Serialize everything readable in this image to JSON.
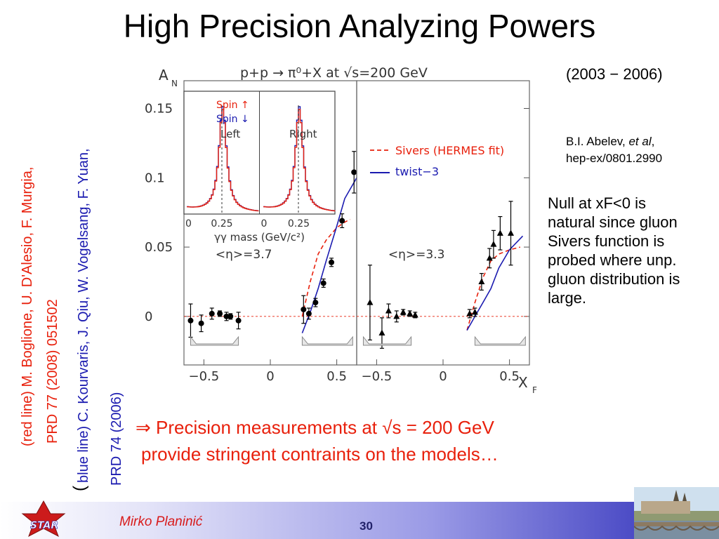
{
  "slide": {
    "title": "High Precision Analyzing Powers",
    "date_range": "(2003 − 2006)",
    "reference": {
      "author_prefix": "B.I. Abelev, ",
      "author_etal": "et al",
      "author_suffix": ",",
      "arxiv": "hep-ex/0801.2990"
    },
    "null_note": "Null at xF<0 is natural since gluon Sivers function is probed where unp. gluon distribution is large.",
    "conclusion": {
      "line1": "⇒ Precision measurements at √s = 200 GeV",
      "line2": "provide stringent contraints on the models…"
    },
    "side_notes": {
      "red_line1": "(red  line) M. Boglione, U. D'Alesio, F. Murgia,",
      "red_line2": "PRD 77 (2008) 051502",
      "blue_paren": "(",
      "blue_line1": "blue  line) C. Kourvaris, J. Qiu, W. Vogelsang, F. Yuan,",
      "blue_line2": "PRD 74 (2006)"
    },
    "footer": {
      "author": "Mirko Planinić",
      "page_number": "30",
      "logo_text": "STAR"
    },
    "colors": {
      "title": "#000000",
      "accent_red": "#e8200c",
      "accent_blue": "#1b1bb0",
      "footer_dark": "#2b2bb8"
    }
  },
  "chart_data": {
    "type": "scatter",
    "title": "p+p → π⁰+X at √s=200 GeV",
    "ylabel": "A_N",
    "ylabel_main": "A",
    "ylabel_sub": "N",
    "xlabel": "X_F",
    "xlabel_main": "X",
    "xlabel_sub": "F",
    "ylim": [
      -0.035,
      0.17
    ],
    "y_ticks": [
      "0.15",
      "0.1",
      "0.05",
      "0"
    ],
    "y_tick_values": [
      0.15,
      0.1,
      0.05,
      0
    ],
    "legend": [
      "Sivers (HERMES fit)",
      "twist−3"
    ],
    "grid": false,
    "panels": [
      {
        "eta_label": "<η>=3.7",
        "xlim": [
          -0.65,
          0.65
        ],
        "x_ticks": [
          "−0.5",
          "0",
          "0.5"
        ],
        "x_tick_values": [
          -0.5,
          0,
          0.5
        ],
        "marker": "circle",
        "points": [
          {
            "x": -0.6,
            "y": -0.003,
            "err": 0.012
          },
          {
            "x": -0.52,
            "y": -0.005,
            "err": 0.006
          },
          {
            "x": -0.44,
            "y": 0.002,
            "err": 0.004
          },
          {
            "x": -0.38,
            "y": 0.002,
            "err": 0.002
          },
          {
            "x": -0.33,
            "y": 0.0,
            "err": 0.003
          },
          {
            "x": -0.3,
            "y": 0.0,
            "err": 0.002
          },
          {
            "x": -0.24,
            "y": -0.003,
            "err": 0.006
          },
          {
            "x": 0.25,
            "y": 0.005,
            "err": 0.01
          },
          {
            "x": 0.29,
            "y": 0.002,
            "err": 0.004
          },
          {
            "x": 0.34,
            "y": 0.01,
            "err": 0.003
          },
          {
            "x": 0.4,
            "y": 0.024,
            "err": 0.003
          },
          {
            "x": 0.46,
            "y": 0.039,
            "err": 0.003
          },
          {
            "x": 0.54,
            "y": 0.069,
            "err": 0.005
          },
          {
            "x": 0.63,
            "y": 0.104,
            "err": 0.015
          }
        ],
        "sivers_curve": {
          "x": [
            0.24,
            0.3,
            0.36,
            0.42,
            0.5,
            0.56,
            0.6
          ],
          "y": [
            0.0,
            0.025,
            0.045,
            0.055,
            0.064,
            0.068,
            0.07
          ]
        },
        "twist3_curve": {
          "x": [
            0.24,
            0.3,
            0.36,
            0.42,
            0.5,
            0.56,
            0.65
          ],
          "y": [
            -0.012,
            0.003,
            0.02,
            0.04,
            0.065,
            0.085,
            0.1
          ]
        }
      },
      {
        "eta_label": "<η>=3.3",
        "xlim": [
          -0.65,
          0.65
        ],
        "x_ticks": [
          "−0.5",
          "0",
          "0.5"
        ],
        "x_tick_values": [
          -0.5,
          0,
          0.5
        ],
        "marker": "triangle",
        "points": [
          {
            "x": -0.55,
            "y": 0.01,
            "err": 0.027
          },
          {
            "x": -0.46,
            "y": -0.012,
            "err": 0.011
          },
          {
            "x": -0.41,
            "y": 0.004,
            "err": 0.005
          },
          {
            "x": -0.35,
            "y": 0.0,
            "err": 0.004
          },
          {
            "x": -0.3,
            "y": 0.003,
            "err": 0.002
          },
          {
            "x": -0.25,
            "y": 0.002,
            "err": 0.002
          },
          {
            "x": -0.21,
            "y": 0.001,
            "err": 0.002
          },
          {
            "x": 0.2,
            "y": 0.002,
            "err": 0.003
          },
          {
            "x": 0.24,
            "y": 0.003,
            "err": 0.003
          },
          {
            "x": 0.29,
            "y": 0.025,
            "err": 0.006
          },
          {
            "x": 0.35,
            "y": 0.042,
            "err": 0.007
          },
          {
            "x": 0.38,
            "y": 0.052,
            "err": 0.01
          },
          {
            "x": 0.43,
            "y": 0.06,
            "err": 0.012
          },
          {
            "x": 0.51,
            "y": 0.06,
            "err": 0.023
          }
        ],
        "sivers_curve": {
          "x": [
            0.18,
            0.24,
            0.3,
            0.36,
            0.42,
            0.5,
            0.58
          ],
          "y": [
            -0.01,
            0.01,
            0.028,
            0.04,
            0.045,
            0.048,
            0.05
          ]
        },
        "twist3_curve": {
          "x": [
            0.18,
            0.24,
            0.3,
            0.36,
            0.42,
            0.5,
            0.6
          ],
          "y": [
            -0.01,
            0.0,
            0.01,
            0.02,
            0.035,
            0.048,
            0.058
          ]
        }
      }
    ],
    "inset": {
      "xlabel": "γγ mass (GeV/c²)",
      "x_ticks": [
        "0",
        "0.25",
        "0",
        "0.25"
      ],
      "labels": [
        "Left",
        "Right"
      ],
      "series": [
        {
          "name": "Spin ↑",
          "color": "#e8200c"
        },
        {
          "name": "Spin ↓",
          "color": "#1b1bb0"
        }
      ]
    }
  }
}
